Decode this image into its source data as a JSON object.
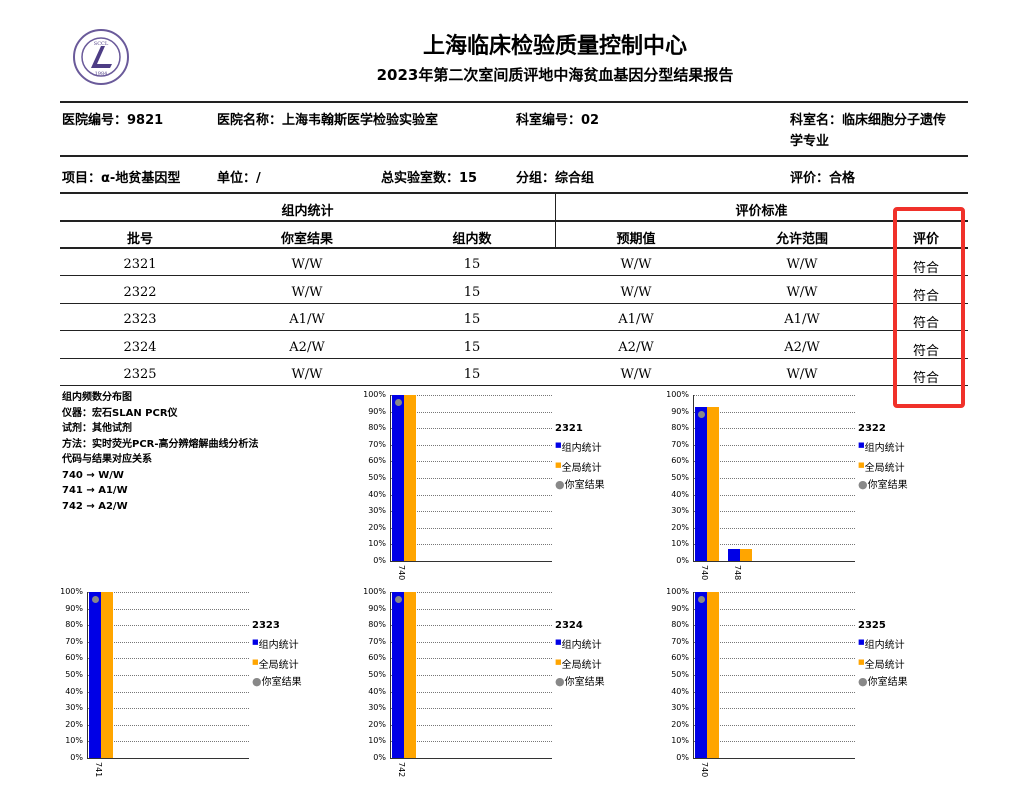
{
  "header": {
    "logo_text": "SCCL 1984",
    "title": "上海临床检验质量控制中心",
    "subtitle": "2023年第二次室间质评地中海贫血基因分型结果报告"
  },
  "info": {
    "hospital_id": "医院编号：9821",
    "hospital_name": "医院名称：上海韦翰斯医学检验实验室",
    "dept_id": "科室编号：02",
    "dept_name_line1": "科室名：临床细胞分子遗传",
    "dept_name_line2": "学专业",
    "project": "项目：α-地贫基因型",
    "unit": "单位：/",
    "total_labs": "总实验室数：15",
    "group": "分组：综合组",
    "evaluation": "评价：合格"
  },
  "table": {
    "group_header_left": "组内统计",
    "group_header_right": "评价标准",
    "columns": [
      "批号",
      "你室结果",
      "组内数",
      "预期值",
      "允许范围",
      "评价"
    ],
    "rows": [
      [
        "2321",
        "W/W",
        "15",
        "W/W",
        "W/W",
        "符合"
      ],
      [
        "2322",
        "W/W",
        "15",
        "W/W",
        "W/W",
        "符合"
      ],
      [
        "2323",
        "A1/W",
        "15",
        "A1/W",
        "A1/W",
        "符合"
      ],
      [
        "2324",
        "A2/W",
        "15",
        "A2/W",
        "A2/W",
        "符合"
      ],
      [
        "2325",
        "W/W",
        "15",
        "W/W",
        "W/W",
        "符合"
      ]
    ],
    "highlight_color": "#f0312a"
  },
  "notes": {
    "lines": [
      "组内频数分布图",
      "仪器：宏石SLAN PCR仪",
      "试剂：其他试剂",
      "方法：实时荧光PCR-高分辨熔解曲线分析法",
      "代码与结果对应关系",
      "740 → W/W",
      "741 → A1/W",
      "742 → A2/W"
    ]
  },
  "chart_data": [
    {
      "type": "bar",
      "title": "2321",
      "categories": [
        "740"
      ],
      "series": [
        {
          "name": "组内统计",
          "values": [
            100
          ]
        },
        {
          "name": "全局统计",
          "values": [
            100
          ]
        }
      ],
      "your_result": "740",
      "yticks": [
        "0%",
        "10%",
        "20%",
        "30%",
        "40%",
        "50%",
        "60%",
        "70%",
        "80%",
        "90%",
        "100%"
      ],
      "ylim": [
        0,
        100
      ],
      "legend": "right"
    },
    {
      "type": "bar",
      "title": "2322",
      "categories": [
        "740",
        "748"
      ],
      "series": [
        {
          "name": "组内统计",
          "values": [
            93,
            7
          ]
        },
        {
          "name": "全局统计",
          "values": [
            93,
            7
          ]
        }
      ],
      "your_result": "740",
      "yticks": [
        "0%",
        "10%",
        "20%",
        "30%",
        "40%",
        "50%",
        "60%",
        "70%",
        "80%",
        "90%",
        "100%"
      ],
      "ylim": [
        0,
        100
      ],
      "legend": "right"
    },
    {
      "type": "bar",
      "title": "2323",
      "categories": [
        "741"
      ],
      "series": [
        {
          "name": "组内统计",
          "values": [
            100
          ]
        },
        {
          "name": "全局统计",
          "values": [
            100
          ]
        }
      ],
      "your_result": "741",
      "yticks": [
        "0%",
        "10%",
        "20%",
        "30%",
        "40%",
        "50%",
        "60%",
        "70%",
        "80%",
        "90%",
        "100%"
      ],
      "ylim": [
        0,
        100
      ],
      "legend": "right"
    },
    {
      "type": "bar",
      "title": "2324",
      "categories": [
        "742"
      ],
      "series": [
        {
          "name": "组内统计",
          "values": [
            100
          ]
        },
        {
          "name": "全局统计",
          "values": [
            100
          ]
        }
      ],
      "your_result": "742",
      "yticks": [
        "0%",
        "10%",
        "20%",
        "30%",
        "40%",
        "50%",
        "60%",
        "70%",
        "80%",
        "90%",
        "100%"
      ],
      "ylim": [
        0,
        100
      ],
      "legend": "right"
    },
    {
      "type": "bar",
      "title": "2325",
      "categories": [
        "740"
      ],
      "series": [
        {
          "name": "组内统计",
          "values": [
            100
          ]
        },
        {
          "name": "全局统计",
          "values": [
            100
          ]
        }
      ],
      "your_result": "740",
      "yticks": [
        "0%",
        "10%",
        "20%",
        "30%",
        "40%",
        "50%",
        "60%",
        "70%",
        "80%",
        "90%",
        "100%"
      ],
      "ylim": [
        0,
        100
      ],
      "legend": "right"
    }
  ],
  "legend": {
    "group": "组内统计",
    "global": "全局统计",
    "yours": "你室结果"
  },
  "colors": {
    "group": "#0000e6",
    "global": "#ffa500",
    "yours": "#888888"
  }
}
